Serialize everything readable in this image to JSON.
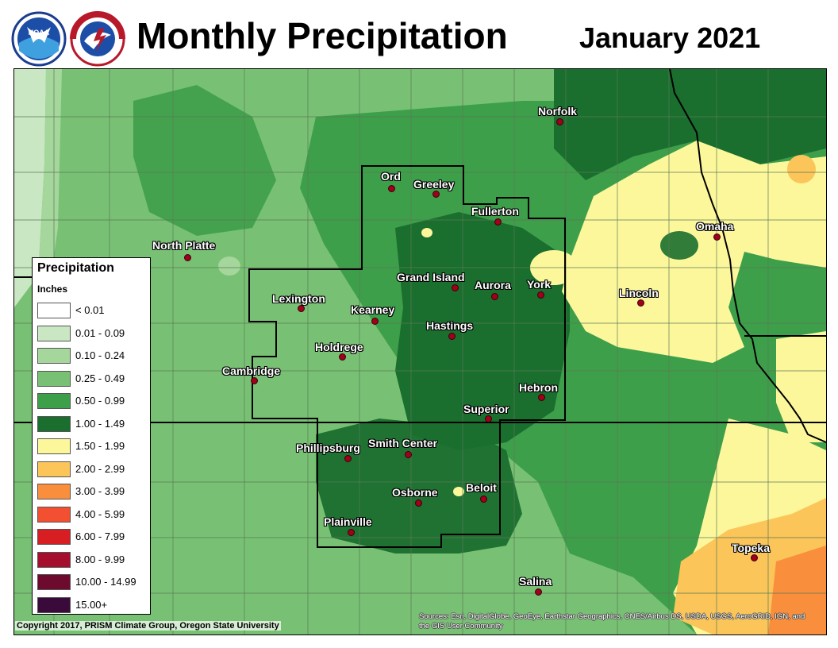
{
  "header": {
    "title": "Monthly Precipitation",
    "month": "January 2021"
  },
  "logos": [
    {
      "name": "noaa-logo",
      "text": "NOAA"
    },
    {
      "name": "nws-logo",
      "text": "NATIONAL WEATHER SERVICE"
    }
  ],
  "legend": {
    "title": "Precipitation",
    "units": "Inches",
    "classes": [
      {
        "label": "< 0.01",
        "color": "#ffffff"
      },
      {
        "label": "0.01 - 0.09",
        "color": "#c9e7c2"
      },
      {
        "label": "0.10 - 0.24",
        "color": "#a5d69b"
      },
      {
        "label": "0.25 - 0.49",
        "color": "#78c174"
      },
      {
        "label": "0.50 - 0.99",
        "color": "#3e9f4b"
      },
      {
        "label": "1.00 - 1.49",
        "color": "#1a6e2e"
      },
      {
        "label": "1.50 - 1.99",
        "color": "#fdf79c"
      },
      {
        "label": "2.00 - 2.99",
        "color": "#fbc55a"
      },
      {
        "label": "3.00 - 3.99",
        "color": "#f98f3c"
      },
      {
        "label": "4.00 - 5.99",
        "color": "#f25030"
      },
      {
        "label": "6.00 - 7.99",
        "color": "#d71e22"
      },
      {
        "label": "8.00 - 9.99",
        "color": "#a50f2d"
      },
      {
        "label": "10.00 - 14.99",
        "color": "#6e0a2e"
      },
      {
        "label": "15.00+",
        "color": "#3a0a3a"
      }
    ]
  },
  "cities": [
    {
      "name": "Norfolk"
    },
    {
      "name": "Ord"
    },
    {
      "name": "Greeley"
    },
    {
      "name": "Fullerton"
    },
    {
      "name": "North Platte"
    },
    {
      "name": "Omaha"
    },
    {
      "name": "Grand Island"
    },
    {
      "name": "Aurora"
    },
    {
      "name": "York"
    },
    {
      "name": "Lincoln"
    },
    {
      "name": "Lexington"
    },
    {
      "name": "Kearney"
    },
    {
      "name": "Hastings"
    },
    {
      "name": "Holdrege"
    },
    {
      "name": "Cambridge"
    },
    {
      "name": "Hebron"
    },
    {
      "name": "Superior"
    },
    {
      "name": "Phillipsburg"
    },
    {
      "name": "Smith Center"
    },
    {
      "name": "Osborne"
    },
    {
      "name": "Beloit"
    },
    {
      "name": "Plainville"
    },
    {
      "name": "Topeka"
    },
    {
      "name": "Salina"
    }
  ],
  "footer": {
    "copyright": "Copyright 2017, PRISM Climate Group, Oregon State University",
    "sources": "Sources: Esri, DigitalGlobe, GeoEye, Earthstar Geographics, CNES/Airbus DS, USDA, USGS, AeroGRID, IGN, and the GIS User Community"
  }
}
